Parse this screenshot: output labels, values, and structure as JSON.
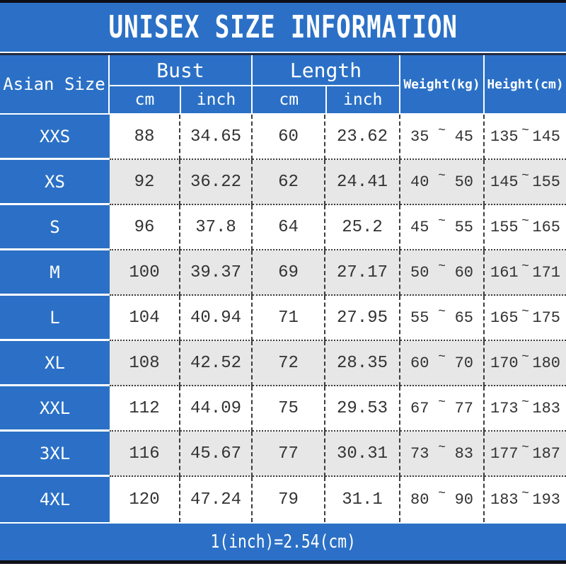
{
  "title": "UNISEX SIZE INFORMATION",
  "footer_note": "1(inch)=2.54(cm)",
  "tilde": "~",
  "colors": {
    "accent_blue": "#2b70c6",
    "alt_row_gray": "#e7e7e7",
    "data_text": "#333333",
    "border_dark": "#0d0d15"
  },
  "header": {
    "size_label": "Asian Size",
    "bust": {
      "label": "Bust",
      "cm": "cm",
      "inch": "inch"
    },
    "length": {
      "label": "Length",
      "cm": "cm",
      "inch": "inch"
    },
    "weight_label": "Weight(kg)",
    "height_label": "Height(cm)"
  },
  "rows": [
    {
      "size": "XXS",
      "bust_cm": "88",
      "bust_in": "34.65",
      "len_cm": "60",
      "len_in": "23.62",
      "w1": "35",
      "w2": "45",
      "h1": "135",
      "h2": "145"
    },
    {
      "size": "XS",
      "bust_cm": "92",
      "bust_in": "36.22",
      "len_cm": "62",
      "len_in": "24.41",
      "w1": "40",
      "w2": "50",
      "h1": "145",
      "h2": "155"
    },
    {
      "size": "S",
      "bust_cm": "96",
      "bust_in": "37.8",
      "len_cm": "64",
      "len_in": "25.2",
      "w1": "45",
      "w2": "55",
      "h1": "155",
      "h2": "165"
    },
    {
      "size": "M",
      "bust_cm": "100",
      "bust_in": "39.37",
      "len_cm": "69",
      "len_in": "27.17",
      "w1": "50",
      "w2": "60",
      "h1": "161",
      "h2": "171"
    },
    {
      "size": "L",
      "bust_cm": "104",
      "bust_in": "40.94",
      "len_cm": "71",
      "len_in": "27.95",
      "w1": "55",
      "w2": "65",
      "h1": "165",
      "h2": "175"
    },
    {
      "size": "XL",
      "bust_cm": "108",
      "bust_in": "42.52",
      "len_cm": "72",
      "len_in": "28.35",
      "w1": "60",
      "w2": "70",
      "h1": "170",
      "h2": "180"
    },
    {
      "size": "XXL",
      "bust_cm": "112",
      "bust_in": "44.09",
      "len_cm": "75",
      "len_in": "29.53",
      "w1": "67",
      "w2": "77",
      "h1": "173",
      "h2": "183"
    },
    {
      "size": "3XL",
      "bust_cm": "116",
      "bust_in": "45.67",
      "len_cm": "77",
      "len_in": "30.31",
      "w1": "73",
      "w2": "83",
      "h1": "177",
      "h2": "187"
    },
    {
      "size": "4XL",
      "bust_cm": "120",
      "bust_in": "47.24",
      "len_cm": "79",
      "len_in": "31.1",
      "w1": "80",
      "w2": "90",
      "h1": "183",
      "h2": "193"
    }
  ],
  "chart_data": {
    "type": "table",
    "title": "UNISEX SIZE INFORMATION",
    "columns": [
      "Asian Size",
      "Bust cm",
      "Bust inch",
      "Length cm",
      "Length inch",
      "Weight(kg)",
      "Height(cm)"
    ],
    "rows": [
      [
        "XXS",
        88,
        34.65,
        60,
        23.62,
        "35~45",
        "135~145"
      ],
      [
        "XS",
        92,
        36.22,
        62,
        24.41,
        "40~50",
        "145~155"
      ],
      [
        "S",
        96,
        37.8,
        64,
        25.2,
        "45~55",
        "155~165"
      ],
      [
        "M",
        100,
        39.37,
        69,
        27.17,
        "50~60",
        "161~171"
      ],
      [
        "L",
        104,
        40.94,
        71,
        27.95,
        "55~65",
        "165~175"
      ],
      [
        "XL",
        108,
        42.52,
        72,
        28.35,
        "60~70",
        "170~180"
      ],
      [
        "XXL",
        112,
        44.09,
        75,
        29.53,
        "67~77",
        "173~183"
      ],
      [
        "3XL",
        116,
        45.67,
        77,
        30.31,
        "73~83",
        "177~187"
      ],
      [
        "4XL",
        120,
        47.24,
        79,
        31.1,
        "80~90",
        "183~193"
      ]
    ],
    "note": "1(inch)=2.54(cm)"
  }
}
